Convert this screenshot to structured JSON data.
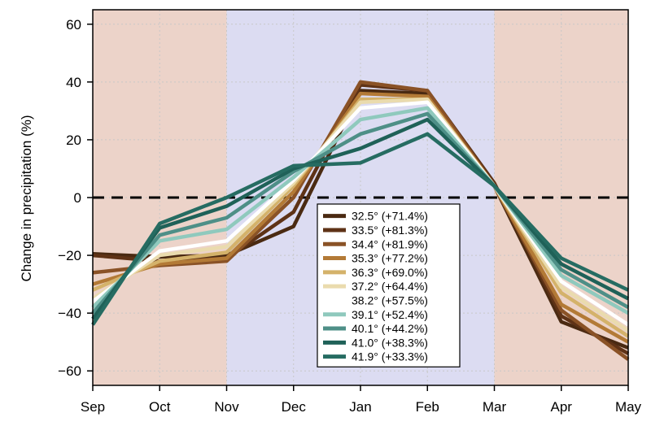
{
  "chart_data": {
    "type": "line",
    "ylabel": "Change in precipitation (%)",
    "xlabel": "",
    "categories": [
      "Sep",
      "Oct",
      "Nov",
      "Dec",
      "Jan",
      "Feb",
      "Mar",
      "Apr",
      "May"
    ],
    "ylim": [
      -65,
      65
    ],
    "yticks": [
      60,
      40,
      20,
      0,
      -20,
      -40,
      -60
    ],
    "ytick_labels": [
      "60",
      "40",
      "20",
      "0",
      "−20",
      "−40",
      "−60"
    ],
    "grid": true,
    "zero_line": "dashed",
    "legend_placement": "lower-center",
    "shaded_regions": [
      {
        "from": 0,
        "to": 2,
        "color": "#ecd3c9"
      },
      {
        "from": 2,
        "to": 6,
        "color": "#dcdcf2"
      },
      {
        "from": 6,
        "to": 8,
        "color": "#ecd3c9"
      }
    ],
    "series": [
      {
        "name": "32.5° (+71.4%)",
        "color": "#4a2a12",
        "values": [
          -19.5,
          -20.5,
          -20,
          -10,
          37,
          36,
          4,
          -43,
          -52
        ]
      },
      {
        "name": "33.5° (+81.3%)",
        "color": "#5e3216",
        "values": [
          -20,
          -22,
          -21,
          -5,
          39,
          37,
          5,
          -41,
          -54
        ]
      },
      {
        "name": "34.4° (+81.9%)",
        "color": "#8a5226",
        "values": [
          -26,
          -23.5,
          -22,
          0,
          40,
          37,
          4,
          -39,
          -56
        ]
      },
      {
        "name": "35.3° (+77.2%)",
        "color": "#b37a36",
        "values": [
          -30,
          -23,
          -21,
          2,
          36,
          35,
          4,
          -37,
          -50
        ]
      },
      {
        "name": "36.3° (+69.0%)",
        "color": "#d4b26a",
        "values": [
          -32,
          -22,
          -19,
          4,
          34,
          34,
          4,
          -33,
          -48
        ]
      },
      {
        "name": "37.2° (+64.4%)",
        "color": "#eadbae",
        "values": [
          -35,
          -20,
          -17,
          5,
          33,
          34,
          4,
          -31,
          -46
        ]
      },
      {
        "name": "38.2° (+57.5%)",
        "color": "#ffffff",
        "values": [
          -36,
          -18.5,
          -15,
          6,
          31,
          33,
          4,
          -29,
          -44
        ]
      },
      {
        "name": "39.1° (+52.4%)",
        "color": "#8fc9bd",
        "values": [
          -38,
          -15,
          -11,
          7,
          27,
          31,
          4,
          -27,
          -40
        ]
      },
      {
        "name": "40.1° (+44.2%)",
        "color": "#4e8f87",
        "values": [
          -40,
          -13,
          -7,
          9,
          22,
          29,
          4,
          -25,
          -38
        ]
      },
      {
        "name": "41.0° (+38.3%)",
        "color": "#1f6158",
        "values": [
          -42,
          -10.5,
          -3,
          10,
          17,
          27,
          4,
          -23,
          -35
        ]
      },
      {
        "name": "41.9° (+33.3%)",
        "color": "#266c62",
        "values": [
          -44,
          -9,
          0,
          11,
          12,
          22,
          4,
          -21,
          -32
        ]
      }
    ]
  }
}
